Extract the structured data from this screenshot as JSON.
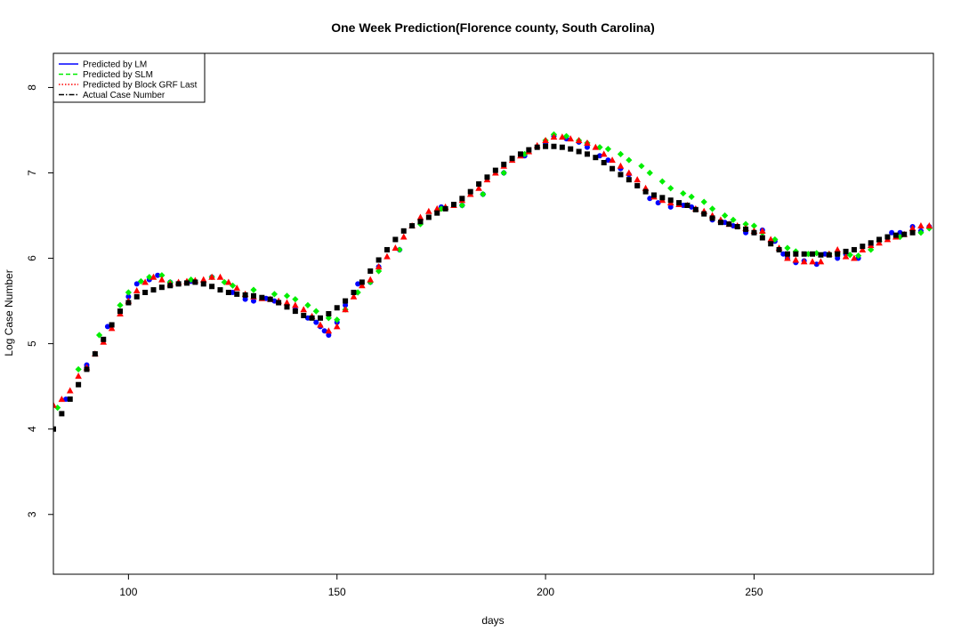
{
  "chart_data": {
    "type": "scatter",
    "title": "One Week Prediction(Florence county, South Carolina)",
    "xlabel": "days",
    "ylabel": "Log Case Number",
    "xlim": [
      82,
      293
    ],
    "ylim": [
      2.3,
      8.4
    ],
    "x_ticks": [
      100,
      150,
      200,
      250
    ],
    "y_ticks": [
      3,
      4,
      5,
      6,
      7,
      8
    ],
    "x_tick_labels": [
      "100",
      "150",
      "200",
      "250"
    ],
    "y_tick_labels": [
      "3",
      "4",
      "5",
      "6",
      "7",
      "8"
    ],
    "legend_position": "top-left",
    "grid": false,
    "series": [
      {
        "name": "Predicted by LM",
        "color": "#0000ff",
        "marker": "circle",
        "line_style": "solid",
        "x": [
          85,
          90,
          95,
          100,
          102,
          105,
          107,
          110,
          115,
          120,
          125,
          128,
          130,
          133,
          135,
          138,
          140,
          143,
          145,
          146,
          147,
          148,
          150,
          152,
          155,
          158,
          160,
          165,
          170,
          175,
          180,
          185,
          190,
          195,
          200,
          202,
          205,
          208,
          210,
          213,
          215,
          218,
          220,
          222,
          225,
          227,
          230,
          233,
          235,
          238,
          240,
          243,
          245,
          248,
          250,
          252,
          255,
          257,
          258,
          260,
          262,
          265,
          267,
          270,
          272,
          275,
          278,
          280,
          283,
          285,
          288,
          290,
          292
        ],
        "y": [
          4.35,
          4.75,
          5.2,
          5.55,
          5.7,
          5.75,
          5.8,
          5.72,
          5.73,
          5.78,
          5.6,
          5.52,
          5.5,
          5.53,
          5.5,
          5.45,
          5.4,
          5.3,
          5.25,
          5.2,
          5.15,
          5.1,
          5.25,
          5.45,
          5.7,
          5.72,
          5.9,
          6.1,
          6.45,
          6.6,
          6.62,
          6.75,
          7.0,
          7.2,
          7.35,
          7.43,
          7.4,
          7.36,
          7.3,
          7.2,
          7.15,
          7.05,
          6.98,
          6.85,
          6.7,
          6.65,
          6.6,
          6.62,
          6.6,
          6.52,
          6.45,
          6.42,
          6.38,
          6.3,
          6.3,
          6.33,
          6.2,
          6.05,
          6.0,
          5.95,
          5.97,
          5.93,
          6.05,
          6.0,
          6.05,
          6.0,
          6.15,
          6.2,
          6.3,
          6.3,
          6.37,
          6.32,
          6.37
        ]
      },
      {
        "name": "Predicted by SLM",
        "color": "#00ee00",
        "marker": "diamond",
        "line_style": "dashed",
        "x": [
          83,
          88,
          93,
          98,
          100,
          103,
          105,
          108,
          110,
          115,
          120,
          123,
          125,
          130,
          135,
          138,
          140,
          143,
          145,
          148,
          150,
          152,
          155,
          158,
          160,
          165,
          170,
          175,
          180,
          185,
          190,
          195,
          200,
          202,
          205,
          208,
          210,
          213,
          215,
          218,
          220,
          223,
          225,
          228,
          230,
          233,
          235,
          238,
          240,
          243,
          245,
          248,
          250,
          252,
          255,
          258,
          260,
          263,
          265,
          268,
          270,
          273,
          275,
          278,
          280,
          285,
          290,
          292
        ],
        "y": [
          4.25,
          4.7,
          5.1,
          5.45,
          5.6,
          5.73,
          5.78,
          5.8,
          5.72,
          5.75,
          5.78,
          5.72,
          5.68,
          5.63,
          5.58,
          5.56,
          5.52,
          5.45,
          5.38,
          5.3,
          5.28,
          5.4,
          5.6,
          5.72,
          5.85,
          6.1,
          6.4,
          6.58,
          6.62,
          6.75,
          7.0,
          7.22,
          7.38,
          7.45,
          7.43,
          7.38,
          7.35,
          7.3,
          7.28,
          7.22,
          7.15,
          7.08,
          7.0,
          6.9,
          6.82,
          6.76,
          6.72,
          6.66,
          6.58,
          6.5,
          6.45,
          6.4,
          6.38,
          6.3,
          6.22,
          6.12,
          6.08,
          6.05,
          6.06,
          6.05,
          6.05,
          6.04,
          6.03,
          6.1,
          6.2,
          6.25,
          6.3,
          6.35
        ]
      },
      {
        "name": "Predicted by Block GRF Last",
        "color": "#ff0000",
        "marker": "triangle",
        "line_style": "dotted",
        "x": [
          82,
          84,
          86,
          88,
          90,
          92,
          94,
          96,
          98,
          100,
          102,
          104,
          106,
          108,
          110,
          112,
          114,
          116,
          118,
          120,
          122,
          124,
          126,
          128,
          130,
          132,
          134,
          136,
          138,
          140,
          142,
          144,
          146,
          148,
          150,
          152,
          154,
          156,
          158,
          160,
          162,
          164,
          166,
          168,
          170,
          172,
          174,
          176,
          178,
          180,
          182,
          184,
          186,
          188,
          190,
          192,
          194,
          196,
          198,
          200,
          202,
          204,
          206,
          208,
          210,
          212,
          214,
          216,
          218,
          220,
          222,
          224,
          226,
          228,
          230,
          232,
          234,
          236,
          238,
          240,
          242,
          244,
          246,
          248,
          250,
          252,
          254,
          256,
          258,
          260,
          262,
          264,
          266,
          268,
          270,
          272,
          274,
          276,
          278,
          280,
          282,
          284,
          286,
          288,
          290,
          292
        ],
        "y": [
          4.28,
          4.35,
          4.45,
          4.62,
          4.72,
          4.88,
          5.02,
          5.18,
          5.35,
          5.5,
          5.62,
          5.72,
          5.78,
          5.75,
          5.7,
          5.72,
          5.73,
          5.74,
          5.75,
          5.78,
          5.78,
          5.72,
          5.65,
          5.58,
          5.55,
          5.53,
          5.52,
          5.5,
          5.48,
          5.45,
          5.4,
          5.32,
          5.22,
          5.15,
          5.2,
          5.4,
          5.55,
          5.68,
          5.75,
          5.9,
          6.02,
          6.12,
          6.25,
          6.38,
          6.48,
          6.55,
          6.58,
          6.6,
          6.62,
          6.68,
          6.75,
          6.82,
          6.92,
          7.0,
          7.08,
          7.15,
          7.2,
          7.25,
          7.32,
          7.38,
          7.42,
          7.42,
          7.4,
          7.38,
          7.35,
          7.3,
          7.22,
          7.15,
          7.08,
          7.0,
          6.92,
          6.82,
          6.72,
          6.68,
          6.65,
          6.63,
          6.62,
          6.58,
          6.55,
          6.5,
          6.45,
          6.4,
          6.38,
          6.35,
          6.32,
          6.32,
          6.22,
          6.12,
          6.0,
          5.98,
          5.96,
          5.96,
          5.96,
          6.05,
          6.1,
          6.02,
          6.0,
          6.1,
          6.15,
          6.18,
          6.22,
          6.25,
          6.28,
          6.35,
          6.38,
          6.38
        ]
      },
      {
        "name": "Actual Case Number",
        "color": "#000000",
        "marker": "square",
        "line_style": "dashdot",
        "x": [
          82,
          84,
          86,
          88,
          90,
          92,
          94,
          96,
          98,
          100,
          102,
          104,
          106,
          108,
          110,
          112,
          114,
          116,
          118,
          120,
          122,
          124,
          126,
          128,
          130,
          132,
          134,
          136,
          138,
          140,
          142,
          144,
          146,
          148,
          150,
          152,
          154,
          156,
          158,
          160,
          162,
          164,
          166,
          168,
          170,
          172,
          174,
          176,
          178,
          180,
          182,
          184,
          186,
          188,
          190,
          192,
          194,
          196,
          198,
          200,
          202,
          204,
          206,
          208,
          210,
          212,
          214,
          216,
          218,
          220,
          222,
          224,
          226,
          228,
          230,
          232,
          234,
          236,
          238,
          240,
          242,
          244,
          246,
          248,
          250,
          252,
          254,
          256,
          258,
          260,
          262,
          264,
          266,
          268,
          270,
          272,
          274,
          276,
          278,
          280,
          282,
          284,
          286,
          288
        ],
        "y": [
          4.0,
          4.18,
          4.35,
          4.52,
          4.7,
          4.88,
          5.05,
          5.22,
          5.38,
          5.48,
          5.55,
          5.6,
          5.63,
          5.66,
          5.68,
          5.7,
          5.71,
          5.72,
          5.7,
          5.67,
          5.63,
          5.6,
          5.58,
          5.57,
          5.56,
          5.54,
          5.52,
          5.48,
          5.43,
          5.38,
          5.33,
          5.3,
          5.3,
          5.35,
          5.42,
          5.5,
          5.6,
          5.72,
          5.85,
          5.98,
          6.1,
          6.22,
          6.32,
          6.38,
          6.43,
          6.48,
          6.53,
          6.58,
          6.63,
          6.7,
          6.78,
          6.87,
          6.95,
          7.03,
          7.1,
          7.17,
          7.22,
          7.27,
          7.3,
          7.31,
          7.31,
          7.3,
          7.28,
          7.25,
          7.22,
          7.18,
          7.12,
          7.05,
          6.98,
          6.92,
          6.85,
          6.78,
          6.74,
          6.71,
          6.68,
          6.65,
          6.62,
          6.57,
          6.52,
          6.47,
          6.42,
          6.4,
          6.37,
          6.34,
          6.3,
          6.24,
          6.17,
          6.1,
          6.05,
          6.05,
          6.05,
          6.05,
          6.04,
          6.04,
          6.05,
          6.08,
          6.1,
          6.14,
          6.18,
          6.22,
          6.25,
          6.27,
          6.28,
          6.3
        ]
      }
    ]
  }
}
